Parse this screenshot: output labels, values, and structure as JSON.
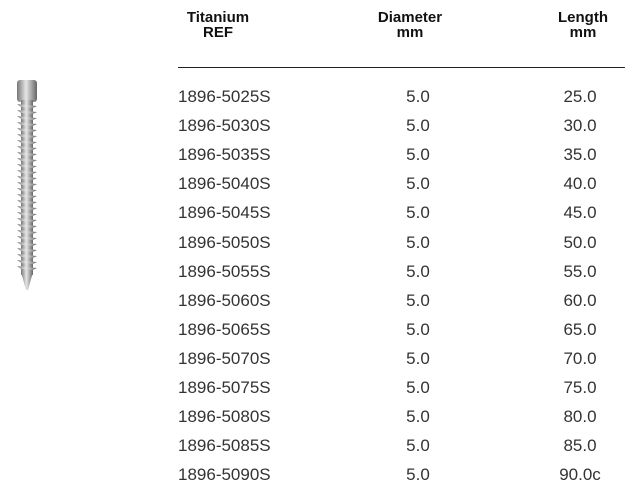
{
  "table": {
    "header": [
      [
        "Titanium",
        "REF"
      ],
      [
        "Diameter",
        "mm"
      ],
      [
        "Length",
        "mm"
      ]
    ],
    "rows": [
      [
        "1896-5025S",
        "5.0",
        "25.0"
      ],
      [
        "1896-5030S",
        "5.0",
        "30.0"
      ],
      [
        "1896-5035S",
        "5.0",
        "35.0"
      ],
      [
        "1896-5040S",
        "5.0",
        "40.0"
      ],
      [
        "1896-5045S",
        "5.0",
        "45.0"
      ],
      [
        "1896-5050S",
        "5.0",
        "50.0"
      ],
      [
        "1896-5055S",
        "5.0",
        "55.0"
      ],
      [
        "1896-5060S",
        "5.0",
        "60.0"
      ],
      [
        "1896-5065S",
        "5.0",
        "65.0"
      ],
      [
        "1896-5070S",
        "5.0",
        "70.0"
      ],
      [
        "1896-5075S",
        "5.0",
        "75.0"
      ],
      [
        "1896-5080S",
        "5.0",
        "80.0"
      ],
      [
        "1896-5085S",
        "5.0",
        "85.0"
      ],
      [
        "1896-5090S",
        "5.0",
        "90.0c"
      ]
    ]
  }
}
